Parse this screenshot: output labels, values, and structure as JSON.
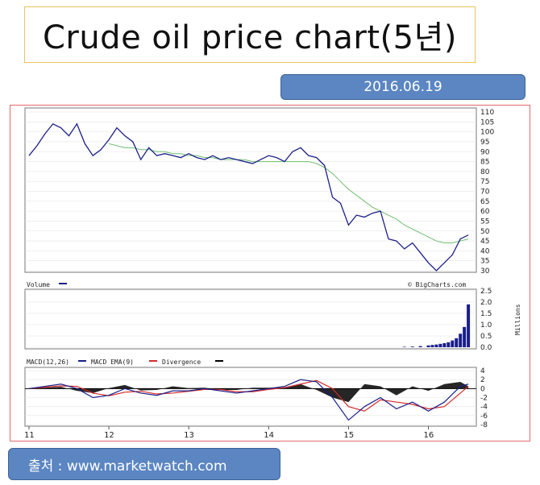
{
  "header": {
    "title": "Crude oil price chart(5년)"
  },
  "date_badge": {
    "text": "2016.06.19"
  },
  "source": {
    "text": "출처 : www.marketwatch.com"
  },
  "chart_data": [
    {
      "type": "line",
      "panel": "price",
      "ylim": [
        30,
        110
      ],
      "yticks": [
        "110",
        "105",
        "100",
        "95",
        "90",
        "85",
        "80",
        "75",
        "70",
        "65",
        "60",
        "55",
        "50",
        "45",
        "40",
        "35",
        "30"
      ],
      "xticks": [
        "11",
        "12",
        "13",
        "14",
        "15",
        "16"
      ],
      "x": [
        11.0,
        11.1,
        11.2,
        11.3,
        11.4,
        11.5,
        11.6,
        11.7,
        11.8,
        11.9,
        12.0,
        12.1,
        12.2,
        12.3,
        12.4,
        12.5,
        12.6,
        12.7,
        12.8,
        12.9,
        13.0,
        13.1,
        13.2,
        13.3,
        13.4,
        13.5,
        13.6,
        13.7,
        13.8,
        13.9,
        14.0,
        14.1,
        14.2,
        14.3,
        14.4,
        14.5,
        14.6,
        14.7,
        14.8,
        14.9,
        15.0,
        15.1,
        15.2,
        15.3,
        15.4,
        15.5,
        15.6,
        15.7,
        15.8,
        15.9,
        16.0,
        16.1,
        16.2,
        16.3,
        16.4,
        16.5
      ],
      "series": [
        {
          "values": [
            88,
            93,
            99,
            104,
            102,
            98,
            104,
            94,
            88,
            91,
            96,
            102,
            98,
            95,
            86,
            92,
            88,
            89,
            88,
            87,
            89,
            87,
            86,
            88,
            86,
            87,
            86,
            85,
            84,
            86,
            88,
            87,
            85,
            90,
            92,
            88,
            87,
            83,
            67,
            64,
            53,
            58,
            57,
            59,
            60,
            46,
            45,
            41,
            44,
            39,
            34,
            30,
            34,
            38,
            46,
            48
          ]
        },
        {
          "values": [
            null,
            null,
            null,
            null,
            null,
            null,
            null,
            null,
            null,
            null,
            94,
            93,
            92,
            92,
            91,
            91,
            90,
            90,
            89,
            89,
            88,
            88,
            87,
            87,
            86,
            86,
            86,
            86,
            85,
            85,
            85,
            85,
            85,
            85,
            85,
            85,
            84,
            82,
            79,
            75,
            71,
            68,
            65,
            62,
            60,
            58,
            56,
            53,
            51,
            49,
            47,
            45,
            44,
            44,
            45,
            46
          ]
        }
      ]
    },
    {
      "type": "bar",
      "panel": "volume",
      "legend": "Volume",
      "credit": "© BigCharts.com",
      "ylim": [
        0,
        2.5
      ],
      "yticks": [
        "2.5",
        "2.0",
        "1.5",
        "1.0",
        "0.5",
        "0.0"
      ],
      "ylabel": "Millions",
      "x": [
        15.7,
        15.8,
        15.9,
        16.0,
        16.05,
        16.1,
        16.15,
        16.2,
        16.25,
        16.3,
        16.35,
        16.4,
        16.45,
        16.5
      ],
      "values": [
        0.02,
        0.03,
        0.05,
        0.08,
        0.1,
        0.12,
        0.15,
        0.18,
        0.22,
        0.3,
        0.4,
        0.6,
        0.9,
        1.9
      ]
    },
    {
      "type": "line",
      "panel": "macd",
      "legend": [
        "MACD(12,26)",
        "MACD EMA(9)",
        "Divergence"
      ],
      "ylim": [
        -8,
        4
      ],
      "yticks": [
        "4",
        "2",
        "0",
        "-2",
        "-4",
        "-6",
        "-8"
      ],
      "x": [
        11.0,
        11.2,
        11.4,
        11.6,
        11.8,
        12.0,
        12.2,
        12.4,
        12.6,
        12.8,
        13.0,
        13.2,
        13.4,
        13.6,
        13.8,
        14.0,
        14.2,
        14.4,
        14.6,
        14.8,
        15.0,
        15.2,
        15.4,
        15.6,
        15.8,
        16.0,
        16.2,
        16.4,
        16.5
      ],
      "series": [
        {
          "name": "MACD(12,26)",
          "values": [
            0,
            0.5,
            1,
            0,
            -2,
            -1.5,
            0,
            -1,
            -1.5,
            -0.5,
            -0.5,
            0,
            -0.5,
            -1,
            -0.5,
            0,
            0.5,
            2,
            1.5,
            -2,
            -7,
            -4,
            -2,
            -4.5,
            -3,
            -5,
            -3,
            0.5,
            1
          ]
        },
        {
          "name": "MACD EMA(9)",
          "values": [
            0,
            0.3,
            0.6,
            0.5,
            -1,
            -1.6,
            -0.8,
            -0.6,
            -1.2,
            -1,
            -0.6,
            -0.2,
            -0.2,
            -0.7,
            -0.7,
            -0.2,
            0.2,
            1,
            1.8,
            0,
            -4,
            -5,
            -2.5,
            -3,
            -3.5,
            -4.5,
            -4,
            -1,
            0.5
          ]
        },
        {
          "name": "Divergence",
          "values": [
            0,
            0.2,
            0.4,
            -0.5,
            -1,
            0.1,
            0.8,
            -0.4,
            -0.3,
            0.5,
            0.1,
            0.2,
            -0.3,
            -0.3,
            0.2,
            0.2,
            0.3,
            1,
            -0.3,
            -2,
            -3,
            1,
            0.5,
            -1.5,
            0.5,
            -0.5,
            1,
            1.5,
            0.5
          ]
        }
      ]
    }
  ],
  "colors": {
    "price": "#1b1f8a",
    "ma": "#6fbf6f",
    "macd": "#1b1f8a",
    "ema": "#d42b2b",
    "divergence": "#000000"
  }
}
